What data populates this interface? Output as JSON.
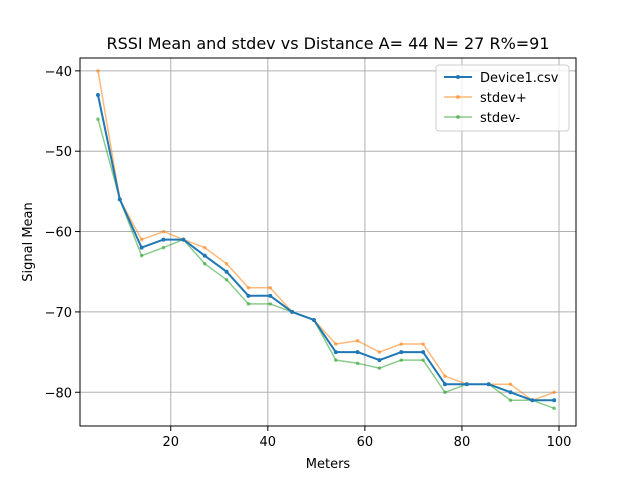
{
  "chart_data": {
    "type": "line",
    "title": "RSSI Mean and stdev vs Distance A= 44 N= 27 R%=91",
    "xlabel": "Meters",
    "ylabel": "Signal Mean",
    "xlim": [
      1.3,
      103.5
    ],
    "ylim": [
      -84.2,
      -38.4
    ],
    "xticks": [
      20,
      40,
      60,
      80,
      100
    ],
    "yticks": [
      -40,
      -50,
      -60,
      -70,
      -80
    ],
    "grid": true,
    "legend_position": "top-right",
    "x": [
      5.0,
      9.5,
      14.0,
      18.5,
      22.6,
      27.0,
      31.5,
      36.0,
      40.5,
      45.0,
      49.5,
      54.0,
      58.5,
      63.0,
      67.5,
      72.0,
      76.5,
      81.0,
      85.5,
      90.0,
      94.5,
      99.0
    ],
    "series": [
      {
        "name": "Device1.csv",
        "color": "#1f77b4",
        "values": [
          -43,
          -56,
          -62,
          -61,
          -61,
          -63,
          -65,
          -68,
          -68,
          -70,
          -71,
          -75,
          -75,
          -76,
          -75,
          -75,
          -79,
          -79,
          -79,
          -80,
          -81,
          -81
        ]
      },
      {
        "name": "stdev+",
        "color": "#ff7f0e",
        "values": [
          -40,
          -56,
          -61,
          -60,
          -61,
          -62,
          -64,
          -67,
          -67,
          -70,
          -71,
          -74,
          -73.6,
          -75,
          -74,
          -74,
          -78,
          -79,
          -79,
          -79,
          -81,
          -80
        ]
      },
      {
        "name": "stdev-",
        "color": "#2ca02c",
        "values": [
          -46,
          -56,
          -63,
          -62,
          -61,
          -64,
          -66,
          -69,
          -69,
          -70,
          -71,
          -76,
          -76.4,
          -77,
          -76,
          -76,
          -80,
          -79,
          -79,
          -81,
          -81,
          -82
        ]
      }
    ]
  }
}
